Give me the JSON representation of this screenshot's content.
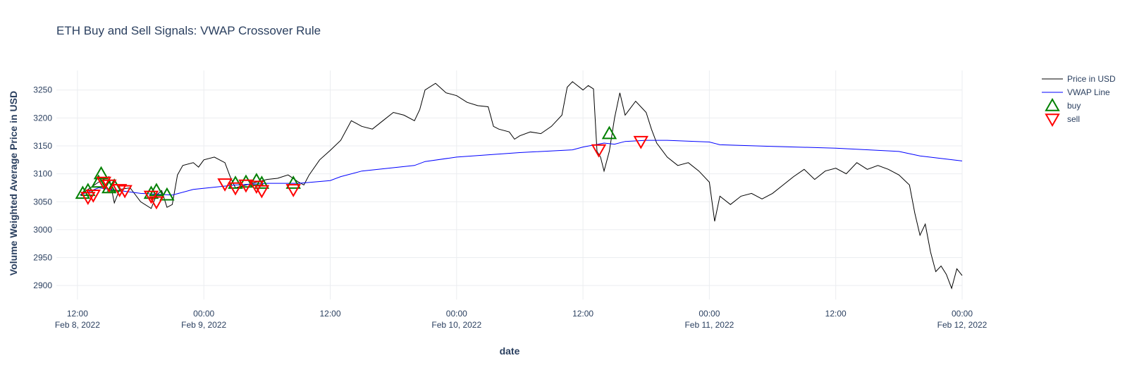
{
  "chart_data": {
    "type": "line",
    "title": "ETH Buy and Sell Signals: VWAP Crossover Rule",
    "xlabel": "date",
    "ylabel": "Volume Weighted Average Price in USD",
    "xlim": [
      "2022-02-08T10:00",
      "2022-02-12T00:00"
    ],
    "ylim": [
      2875,
      3285
    ],
    "grid": true,
    "legend_position": "top-right",
    "x_ticks": [
      {
        "value": "2022-02-08T12:00",
        "label": "12:00",
        "sublabel": "Feb 8, 2022"
      },
      {
        "value": "2022-02-09T00:00",
        "label": "00:00",
        "sublabel": "Feb 9, 2022"
      },
      {
        "value": "2022-02-09T12:00",
        "label": "12:00",
        "sublabel": ""
      },
      {
        "value": "2022-02-10T00:00",
        "label": "00:00",
        "sublabel": "Feb 10, 2022"
      },
      {
        "value": "2022-02-10T12:00",
        "label": "12:00",
        "sublabel": ""
      },
      {
        "value": "2022-02-11T00:00",
        "label": "00:00",
        "sublabel": "Feb 11, 2022"
      },
      {
        "value": "2022-02-11T12:00",
        "label": "12:00",
        "sublabel": ""
      },
      {
        "value": "2022-02-12T00:00",
        "label": "00:00",
        "sublabel": "Feb 12, 2022"
      }
    ],
    "y_ticks": [
      2900,
      2950,
      3000,
      3050,
      3100,
      3150,
      3200,
      3250
    ],
    "series": [
      {
        "name": "Price in USD",
        "color": "#000000",
        "mode": "line",
        "points": [
          [
            "2022-02-08T12:15",
            3062
          ],
          [
            "2022-02-08T13:00",
            3072
          ],
          [
            "2022-02-08T14:00",
            3085
          ],
          [
            "2022-02-08T15:00",
            3095
          ],
          [
            "2022-02-08T15:30",
            3048
          ],
          [
            "2022-02-08T16:00",
            3072
          ],
          [
            "2022-02-08T17:00",
            3075
          ],
          [
            "2022-02-08T18:00",
            3050
          ],
          [
            "2022-02-08T19:00",
            3038
          ],
          [
            "2022-02-08T19:30",
            3062
          ],
          [
            "2022-02-08T20:00",
            3070
          ],
          [
            "2022-02-08T20:30",
            3040
          ],
          [
            "2022-02-08T21:00",
            3045
          ],
          [
            "2022-02-08T21:30",
            3098
          ],
          [
            "2022-02-08T22:00",
            3115
          ],
          [
            "2022-02-08T23:00",
            3120
          ],
          [
            "2022-02-08T23:30",
            3112
          ],
          [
            "2022-02-09T00:00",
            3125
          ],
          [
            "2022-02-09T01:00",
            3130
          ],
          [
            "2022-02-09T02:00",
            3120
          ],
          [
            "2022-02-09T02:30",
            3095
          ],
          [
            "2022-02-09T03:00",
            3075
          ],
          [
            "2022-02-09T04:00",
            3080
          ],
          [
            "2022-02-09T05:00",
            3085
          ],
          [
            "2022-02-09T06:00",
            3090
          ],
          [
            "2022-02-09T07:00",
            3092
          ],
          [
            "2022-02-09T08:00",
            3098
          ],
          [
            "2022-02-09T09:00",
            3085
          ],
          [
            "2022-02-09T09:30",
            3080
          ],
          [
            "2022-02-09T10:00",
            3098
          ],
          [
            "2022-02-09T11:00",
            3125
          ],
          [
            "2022-02-09T12:00",
            3142
          ],
          [
            "2022-02-09T13:00",
            3160
          ],
          [
            "2022-02-09T14:00",
            3195
          ],
          [
            "2022-02-09T15:00",
            3185
          ],
          [
            "2022-02-09T16:00",
            3180
          ],
          [
            "2022-02-09T17:00",
            3195
          ],
          [
            "2022-02-09T18:00",
            3210
          ],
          [
            "2022-02-09T19:00",
            3205
          ],
          [
            "2022-02-09T20:00",
            3195
          ],
          [
            "2022-02-09T20:30",
            3215
          ],
          [
            "2022-02-09T21:00",
            3250
          ],
          [
            "2022-02-09T22:00",
            3262
          ],
          [
            "2022-02-09T23:00",
            3245
          ],
          [
            "2022-02-10T00:00",
            3240
          ],
          [
            "2022-02-10T01:00",
            3228
          ],
          [
            "2022-02-10T02:00",
            3222
          ],
          [
            "2022-02-10T03:00",
            3220
          ],
          [
            "2022-02-10T03:30",
            3185
          ],
          [
            "2022-02-10T04:00",
            3180
          ],
          [
            "2022-02-10T05:00",
            3175
          ],
          [
            "2022-02-10T05:30",
            3162
          ],
          [
            "2022-02-10T06:00",
            3168
          ],
          [
            "2022-02-10T07:00",
            3175
          ],
          [
            "2022-02-10T08:00",
            3172
          ],
          [
            "2022-02-10T09:00",
            3185
          ],
          [
            "2022-02-10T10:00",
            3205
          ],
          [
            "2022-02-10T10:30",
            3255
          ],
          [
            "2022-02-10T11:00",
            3265
          ],
          [
            "2022-02-10T12:00",
            3250
          ],
          [
            "2022-02-10T12:30",
            3258
          ],
          [
            "2022-02-10T13:00",
            3252
          ],
          [
            "2022-02-10T13:20",
            3140
          ],
          [
            "2022-02-10T13:40",
            3130
          ],
          [
            "2022-02-10T14:00",
            3105
          ],
          [
            "2022-02-10T14:30",
            3140
          ],
          [
            "2022-02-10T15:00",
            3200
          ],
          [
            "2022-02-10T15:30",
            3245
          ],
          [
            "2022-02-10T16:00",
            3205
          ],
          [
            "2022-02-10T17:00",
            3230
          ],
          [
            "2022-02-10T18:00",
            3210
          ],
          [
            "2022-02-10T18:30",
            3180
          ],
          [
            "2022-02-10T19:00",
            3155
          ],
          [
            "2022-02-10T20:00",
            3130
          ],
          [
            "2022-02-10T21:00",
            3115
          ],
          [
            "2022-02-10T22:00",
            3120
          ],
          [
            "2022-02-10T23:00",
            3105
          ],
          [
            "2022-02-11T00:00",
            3085
          ],
          [
            "2022-02-11T00:30",
            3015
          ],
          [
            "2022-02-11T01:00",
            3060
          ],
          [
            "2022-02-11T02:00",
            3045
          ],
          [
            "2022-02-11T03:00",
            3060
          ],
          [
            "2022-02-11T04:00",
            3065
          ],
          [
            "2022-02-11T05:00",
            3055
          ],
          [
            "2022-02-11T06:00",
            3065
          ],
          [
            "2022-02-11T07:00",
            3080
          ],
          [
            "2022-02-11T08:00",
            3095
          ],
          [
            "2022-02-11T09:00",
            3108
          ],
          [
            "2022-02-11T10:00",
            3090
          ],
          [
            "2022-02-11T11:00",
            3105
          ],
          [
            "2022-02-11T12:00",
            3110
          ],
          [
            "2022-02-11T13:00",
            3100
          ],
          [
            "2022-02-11T14:00",
            3120
          ],
          [
            "2022-02-11T15:00",
            3108
          ],
          [
            "2022-02-11T16:00",
            3115
          ],
          [
            "2022-02-11T17:00",
            3108
          ],
          [
            "2022-02-11T18:00",
            3098
          ],
          [
            "2022-02-11T19:00",
            3080
          ],
          [
            "2022-02-11T19:30",
            3030
          ],
          [
            "2022-02-11T20:00",
            2990
          ],
          [
            "2022-02-11T20:30",
            3010
          ],
          [
            "2022-02-11T21:00",
            2960
          ],
          [
            "2022-02-11T21:30",
            2925
          ],
          [
            "2022-02-11T22:00",
            2935
          ],
          [
            "2022-02-11T22:30",
            2920
          ],
          [
            "2022-02-11T23:00",
            2895
          ],
          [
            "2022-02-11T23:30",
            2930
          ],
          [
            "2022-02-12T00:00",
            2918
          ]
        ]
      },
      {
        "name": "VWAP Line",
        "color": "#0000ff",
        "mode": "line",
        "points": [
          [
            "2022-02-08T12:15",
            3062
          ],
          [
            "2022-02-08T14:00",
            3075
          ],
          [
            "2022-02-08T18:00",
            3065
          ],
          [
            "2022-02-08T21:00",
            3062
          ],
          [
            "2022-02-08T23:00",
            3072
          ],
          [
            "2022-02-09T03:00",
            3080
          ],
          [
            "2022-02-09T06:00",
            3083
          ],
          [
            "2022-02-09T09:00",
            3083
          ],
          [
            "2022-02-09T12:00",
            3088
          ],
          [
            "2022-02-09T13:00",
            3095
          ],
          [
            "2022-02-09T15:00",
            3105
          ],
          [
            "2022-02-09T20:00",
            3115
          ],
          [
            "2022-02-09T21:00",
            3122
          ],
          [
            "2022-02-10T00:00",
            3130
          ],
          [
            "2022-02-10T06:00",
            3138
          ],
          [
            "2022-02-10T11:00",
            3143
          ],
          [
            "2022-02-10T12:00",
            3148
          ],
          [
            "2022-02-10T14:00",
            3155
          ],
          [
            "2022-02-10T15:00",
            3153
          ],
          [
            "2022-02-10T16:00",
            3158
          ],
          [
            "2022-02-10T18:00",
            3160
          ],
          [
            "2022-02-10T20:00",
            3160
          ],
          [
            "2022-02-11T00:00",
            3157
          ],
          [
            "2022-02-11T01:00",
            3152
          ],
          [
            "2022-02-11T06:00",
            3149
          ],
          [
            "2022-02-11T12:00",
            3146
          ],
          [
            "2022-02-11T18:00",
            3140
          ],
          [
            "2022-02-11T20:00",
            3132
          ],
          [
            "2022-02-12T00:00",
            3123
          ]
        ]
      },
      {
        "name": "buy",
        "color": "#008000",
        "mode": "markers",
        "symbol": "triangle-up",
        "points": [
          [
            "2022-02-08T12:30",
            3065
          ],
          [
            "2022-02-08T13:00",
            3070
          ],
          [
            "2022-02-08T14:00",
            3085
          ],
          [
            "2022-02-08T14:15",
            3100
          ],
          [
            "2022-02-08T15:00",
            3075
          ],
          [
            "2022-02-08T15:30",
            3078
          ],
          [
            "2022-02-08T19:00",
            3065
          ],
          [
            "2022-02-08T19:30",
            3070
          ],
          [
            "2022-02-08T20:30",
            3062
          ],
          [
            "2022-02-09T03:00",
            3083
          ],
          [
            "2022-02-09T04:00",
            3085
          ],
          [
            "2022-02-09T05:00",
            3088
          ],
          [
            "2022-02-09T05:30",
            3083
          ],
          [
            "2022-02-09T08:30",
            3083
          ],
          [
            "2022-02-10T14:30",
            3172
          ]
        ]
      },
      {
        "name": "sell",
        "color": "#ff0000",
        "mode": "markers",
        "symbol": "triangle-down",
        "points": [
          [
            "2022-02-08T13:00",
            3058
          ],
          [
            "2022-02-08T13:30",
            3062
          ],
          [
            "2022-02-08T14:30",
            3085
          ],
          [
            "2022-02-08T15:00",
            3080
          ],
          [
            "2022-02-08T16:00",
            3072
          ],
          [
            "2022-02-08T16:30",
            3070
          ],
          [
            "2022-02-08T19:00",
            3060
          ],
          [
            "2022-02-08T19:30",
            3050
          ],
          [
            "2022-02-09T02:00",
            3082
          ],
          [
            "2022-02-09T03:00",
            3075
          ],
          [
            "2022-02-09T04:00",
            3080
          ],
          [
            "2022-02-09T05:00",
            3078
          ],
          [
            "2022-02-09T05:30",
            3070
          ],
          [
            "2022-02-09T08:30",
            3072
          ],
          [
            "2022-02-10T13:30",
            3143
          ],
          [
            "2022-02-10T17:30",
            3158
          ]
        ]
      }
    ]
  }
}
